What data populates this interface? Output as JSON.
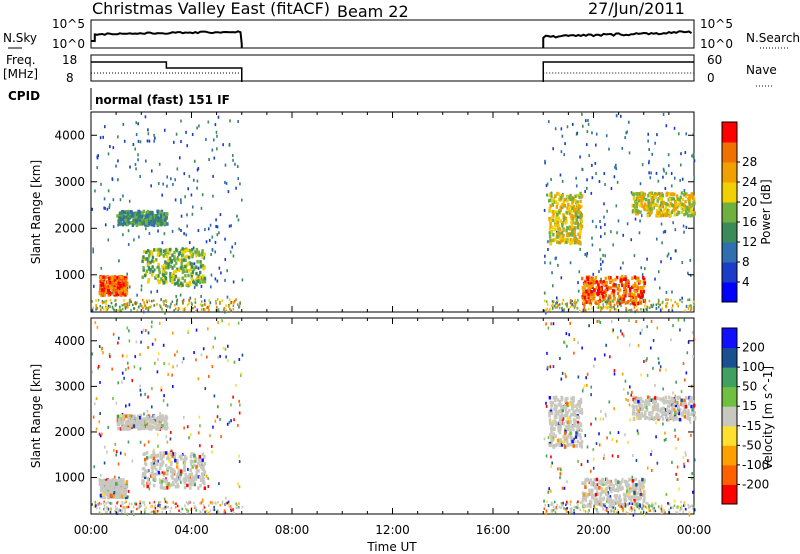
{
  "header": {
    "title": "Christmas Valley East (fitACF)",
    "beam": "Beam 22",
    "date": "27/Jun/2011"
  },
  "top_panels": {
    "nsky_label": "N.Sky",
    "nsky_ticks": [
      "10^5",
      "10^0"
    ],
    "nsearch_label": "N.Search",
    "nsearch_ticks": [
      "10^5",
      "10^0"
    ],
    "freq_label_1": "Freq.",
    "freq_label_2": "[MHz]",
    "freq_ticks": [
      "18",
      "8"
    ],
    "nave_label": "Nave",
    "nave_ticks": [
      "60",
      "0"
    ],
    "cpid_label": "CPID",
    "cpid_text": "normal (fast) 151 IF"
  },
  "colors": {
    "power_scale": [
      "#0000ff",
      "#1a3cc8",
      "#2f6fb0",
      "#3b8a5a",
      "#70b040",
      "#f0d000",
      "#f0a000",
      "#f07000",
      "#ff0000"
    ],
    "velocity_scale": [
      "#ff0000",
      "#ff6000",
      "#ffa000",
      "#ffe030",
      "#c8c8c0",
      "#70c040",
      "#40a060",
      "#1a5090",
      "#1010ff"
    ],
    "ground_scatter": "#c8c8c0"
  },
  "chart_data": [
    {
      "type": "heatmap",
      "title": "",
      "xlabel": "Time UT",
      "ylabel": "Slant Range [km]",
      "x_ticks": [
        "00:00",
        "04:00",
        "08:00",
        "12:00",
        "16:00",
        "20:00",
        "00:00"
      ],
      "y_ticks": [
        "1000",
        "2000",
        "3000",
        "4000"
      ],
      "ylim": [
        200,
        4500
      ],
      "xlim_hours": [
        0,
        24
      ],
      "colorbar_label": "Power [dB]",
      "colorbar_ticks": [
        "4",
        "8",
        "12",
        "16",
        "20",
        "24",
        "28"
      ],
      "data_windows_hours": [
        [
          0,
          6
        ],
        [
          18,
          24
        ]
      ],
      "features": [
        {
          "t_start": 0.3,
          "t_end": 1.4,
          "range_km": [
            600,
            1000
          ],
          "power_db": 26
        },
        {
          "t_start": 2.0,
          "t_end": 4.5,
          "range_km": [
            800,
            1600
          ],
          "power_db": 16
        },
        {
          "t_start": 1.0,
          "t_end": 3.0,
          "range_km": [
            2100,
            2400
          ],
          "power_db": 10
        },
        {
          "t_start": 18.2,
          "t_end": 19.5,
          "range_km": [
            1700,
            2800
          ],
          "power_db": 18
        },
        {
          "t_start": 19.5,
          "t_end": 22.0,
          "range_km": [
            400,
            1000
          ],
          "power_db": 26
        },
        {
          "t_start": 21.5,
          "t_end": 24.0,
          "range_km": [
            2300,
            2800
          ],
          "power_db": 18
        }
      ]
    },
    {
      "type": "heatmap",
      "title": "",
      "xlabel": "Time UT",
      "ylabel": "Slant Range [km]",
      "x_ticks": [
        "00:00",
        "04:00",
        "08:00",
        "12:00",
        "16:00",
        "20:00",
        "00:00"
      ],
      "y_ticks": [
        "1000",
        "2000",
        "3000",
        "4000"
      ],
      "ylim": [
        200,
        4500
      ],
      "xlim_hours": [
        0,
        24
      ],
      "colorbar_label": "Velocity [m s^-1]",
      "colorbar_ticks": [
        "200",
        "100",
        "50",
        "15",
        "-15",
        "-50",
        "-100",
        "-200"
      ],
      "data_windows_hours": [
        [
          0,
          6
        ],
        [
          18,
          24
        ]
      ]
    }
  ]
}
